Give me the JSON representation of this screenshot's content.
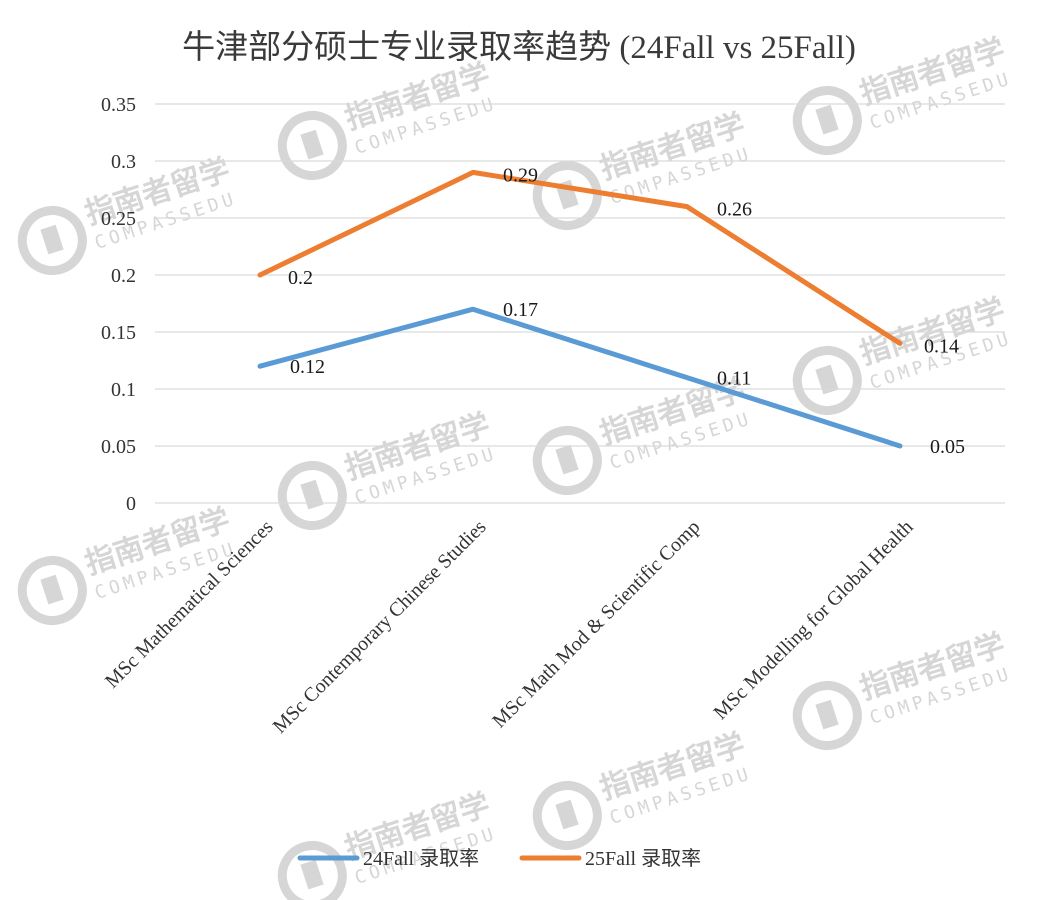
{
  "chart_data": {
    "type": "line",
    "title": "牛津部分硕士专业录取率趋势 (24Fall vs 25Fall)",
    "categories": [
      "MSc Mathematical Sciences",
      "MSc Contemporary Chinese Studies",
      "MSc Math Mod & Scientific Comp",
      "MSc Modelling for Global Health"
    ],
    "series": [
      {
        "name": "24Fall 录取率",
        "values": [
          0.12,
          0.17,
          0.11,
          0.05
        ],
        "labels": [
          "0.12",
          "0.17",
          "0.11",
          "0.05"
        ],
        "color": "#5b9bd5"
      },
      {
        "name": "25Fall 录取率",
        "values": [
          0.2,
          0.29,
          0.26,
          0.14
        ],
        "labels": [
          "0.2",
          "0.29",
          "0.26",
          "0.14"
        ],
        "color": "#ed7d31"
      }
    ],
    "ylim": [
      0,
      0.35
    ],
    "yticks": [
      "0",
      "0.05",
      "0.1",
      "0.15",
      "0.2",
      "0.25",
      "0.3",
      "0.35"
    ],
    "yticks_values": [
      0,
      0.05,
      0.1,
      0.15,
      0.2,
      0.25,
      0.3,
      0.35
    ],
    "grid": true,
    "legend": "bottom",
    "xlabel": "",
    "ylabel": ""
  },
  "watermark": {
    "brand_cn": "指南者留学",
    "brand_en": "COMPASSEDU",
    "color": "#d6d6d6"
  }
}
